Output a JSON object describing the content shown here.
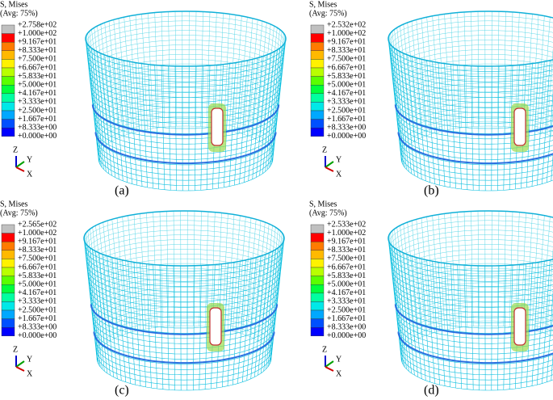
{
  "panels": [
    {
      "legend_title": "S, Mises",
      "legend_subtitle": "(Avg: 75%)",
      "legend_labels": [
        "+2.758e+02",
        "+1.000e+02",
        "+9.167e+01",
        "+8.333e+01",
        "+7.500e+01",
        "+6.667e+01",
        "+5.833e+01",
        "+5.000e+01",
        "+4.167e+01",
        "+3.333e+01",
        "+2.500e+01",
        "+1.667e+01",
        "+8.333e+00",
        "+0.000e+00"
      ],
      "axes": {
        "z": "Z",
        "y": "Y",
        "x": "X"
      },
      "caption": "(a)"
    },
    {
      "legend_title": "S, Mises",
      "legend_subtitle": "(Avg: 75%)",
      "legend_labels": [
        "+2.532e+02",
        "+1.000e+02",
        "+9.167e+01",
        "+8.333e+01",
        "+7.500e+01",
        "+6.667e+01",
        "+5.833e+01",
        "+5.000e+01",
        "+4.167e+01",
        "+3.333e+01",
        "+2.500e+01",
        "+1.667e+01",
        "+8.333e+00",
        "+0.000e+00"
      ],
      "axes": {
        "z": "Z",
        "y": "Y",
        "x": "X"
      },
      "caption": "(b)"
    },
    {
      "legend_title": "S, Mises",
      "legend_subtitle": "(Avg: 75%)",
      "legend_labels": [
        "+2.565e+02",
        "+1.000e+02",
        "+9.167e+01",
        "+8.333e+01",
        "+7.500e+01",
        "+6.667e+01",
        "+5.833e+01",
        "+5.000e+01",
        "+4.167e+01",
        "+3.333e+01",
        "+2.500e+01",
        "+1.667e+01",
        "+8.333e+00",
        "+0.000e+00"
      ],
      "axes": {
        "z": "Z",
        "y": "Y",
        "x": "X"
      },
      "caption": "(c)"
    },
    {
      "legend_title": "S, Mises",
      "legend_subtitle": "(Avg: 75%)",
      "legend_labels": [
        "+2.533e+02",
        "+1.000e+02",
        "+9.167e+01",
        "+8.333e+01",
        "+7.500e+01",
        "+6.667e+01",
        "+5.833e+01",
        "+5.000e+01",
        "+4.167e+01",
        "+3.333e+01",
        "+2.500e+01",
        "+1.667e+01",
        "+8.333e+00",
        "+0.000e+00"
      ],
      "axes": {
        "z": "Z",
        "y": "Y",
        "x": "X"
      },
      "caption": "(d)"
    }
  ]
}
